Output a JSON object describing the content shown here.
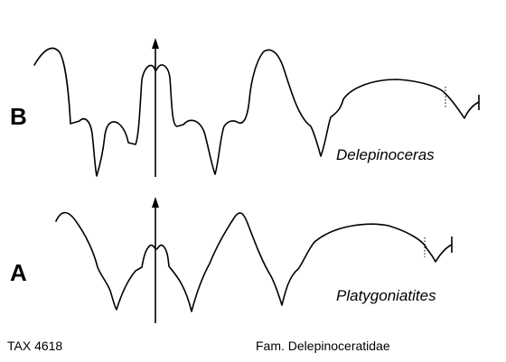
{
  "figure": {
    "panel_b": {
      "letter": "B",
      "genus": "Delepinoceras"
    },
    "panel_a": {
      "letter": "A",
      "genus": "Platygoniatites"
    },
    "footer": {
      "left": "TAX 4618",
      "right": "Fam. Delepinoceratidae"
    }
  }
}
